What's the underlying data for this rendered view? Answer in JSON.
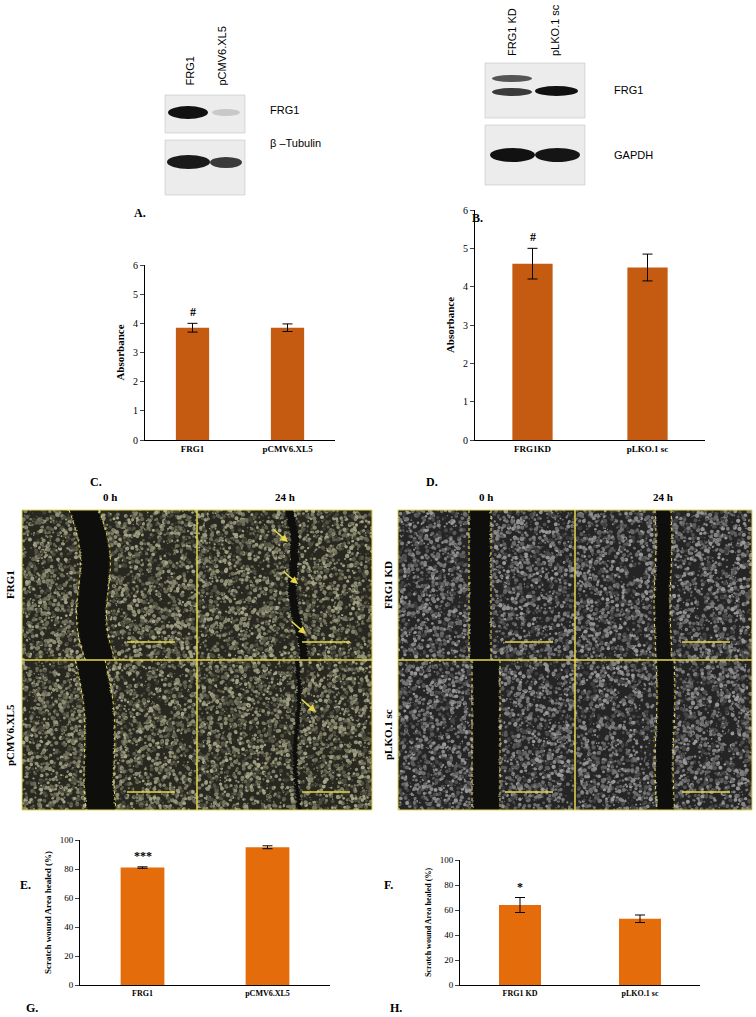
{
  "blots": [
    {
      "panel_label": "A.",
      "lanes": [
        "FRG1",
        "pCMV6.XL5"
      ],
      "rows": [
        "FRG1",
        "β –Tubulin"
      ]
    },
    {
      "panel_label": "B.",
      "lanes": [
        "FRG1 KD",
        "pLKO.1 sc"
      ],
      "rows": [
        "FRG1",
        "GAPDH"
      ]
    }
  ],
  "chart_data": [
    {
      "panel_label": "C.",
      "type": "bar",
      "y_label": "Absorbance",
      "categories": [
        "FRG1",
        "pCMV6.XL5"
      ],
      "values": [
        3.85,
        3.85
      ],
      "errors": [
        0.15,
        0.13
      ],
      "color": "#c55a11",
      "ylim": [
        0,
        6
      ],
      "yticks": [
        0,
        1,
        2,
        3,
        4,
        5,
        6
      ],
      "grid": false,
      "annotations": [
        {
          "category": "FRG1",
          "text": "#"
        }
      ]
    },
    {
      "panel_label": "D.",
      "type": "bar",
      "y_label": "Absorbance",
      "categories": [
        "FRG1KD",
        "pLKO.1 sc"
      ],
      "values": [
        4.6,
        4.5
      ],
      "errors": [
        0.4,
        0.35
      ],
      "color": "#c55a11",
      "ylim": [
        0,
        6
      ],
      "yticks": [
        0,
        1,
        2,
        3,
        4,
        5,
        6
      ],
      "grid": false,
      "annotations": [
        {
          "category": "FRG1KD",
          "text": "#"
        }
      ]
    },
    {
      "panel_label": "G.",
      "type": "bar",
      "y_label": "Scratch wound Area healed (%)",
      "categories": [
        "FRG1",
        "pCMV6.XL5"
      ],
      "values": [
        81,
        95
      ],
      "errors": [
        0.5,
        1
      ],
      "color": "#e46c0a",
      "ylim": [
        0,
        100
      ],
      "yticks": [
        0,
        20,
        40,
        60,
        80,
        100
      ],
      "grid": false,
      "annotations": [
        {
          "category": "FRG1",
          "text": "***"
        }
      ]
    },
    {
      "panel_label": "H.",
      "type": "bar",
      "y_label": "Scratch wound Area healed (%)",
      "categories": [
        "FRG1 KD",
        "pLKO.1 sc"
      ],
      "values": [
        64,
        53
      ],
      "errors": [
        6,
        3
      ],
      "color": "#e46c0a",
      "ylim": [
        0,
        100
      ],
      "yticks": [
        0,
        20,
        40,
        60,
        80,
        100
      ],
      "grid": false,
      "annotations": [
        {
          "category": "FRG1 KD",
          "text": "*"
        }
      ]
    }
  ],
  "micrographs": [
    {
      "panel_label": "E.",
      "columns": [
        "0 h",
        "24 h"
      ],
      "rows": [
        "FRG1",
        "pCMV6.XL5"
      ]
    },
    {
      "panel_label": "F.",
      "columns": [
        "0 h",
        "24 h"
      ],
      "rows": [
        "FRG1 KD",
        "pLKO.1 sc"
      ]
    }
  ]
}
